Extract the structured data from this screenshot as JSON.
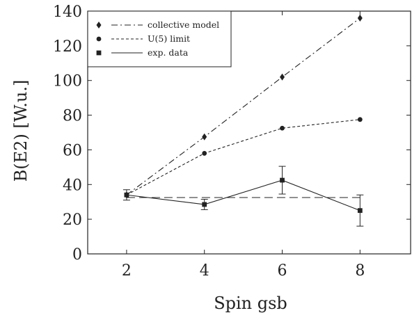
{
  "chart_data": {
    "type": "line",
    "xlabel": "Spin gsb",
    "ylabel": "B(E2) [W.u.]",
    "x": [
      2,
      4,
      6,
      8
    ],
    "xlim": [
      1,
      9.3
    ],
    "ylim": [
      0,
      140
    ],
    "xticks": [
      2,
      4,
      6,
      8
    ],
    "yticks": [
      0,
      20,
      40,
      60,
      80,
      100,
      120,
      140
    ],
    "grid": false,
    "legend_position": "top-left",
    "series": [
      {
        "name": "collective model",
        "marker": "diamond",
        "line_style": "dash-dot",
        "values": [
          34,
          67.5,
          102,
          136
        ]
      },
      {
        "name": "U(5) limit",
        "marker": "circle",
        "line_style": "dashed",
        "values": [
          34,
          58,
          72.5,
          77.5
        ]
      },
      {
        "name": "exp. data",
        "marker": "square",
        "line_style": "solid",
        "values": [
          34,
          28.5,
          42.5,
          25
        ],
        "errors": [
          3,
          3,
          8,
          9
        ]
      }
    ],
    "reference_lines": [
      {
        "y": 32.5,
        "line_style": "long-dash"
      }
    ]
  }
}
